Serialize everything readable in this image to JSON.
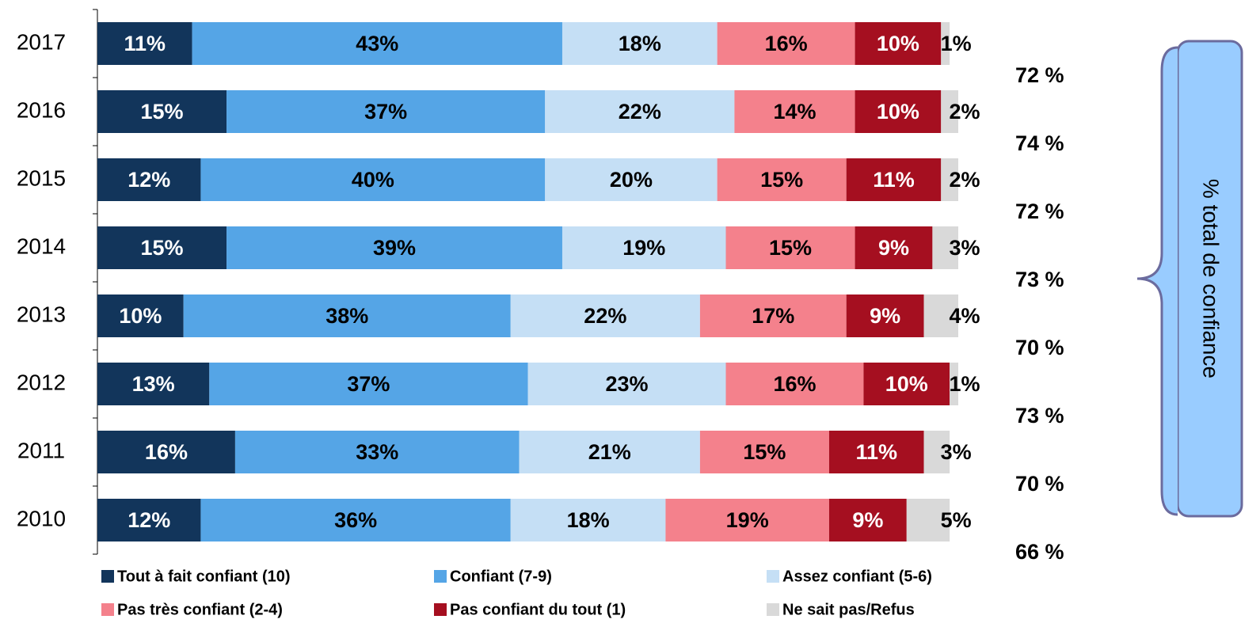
{
  "chart_data": {
    "type": "stacked-barh",
    "categories": [
      "2017",
      "2016",
      "2015",
      "2014",
      "2013",
      "2012",
      "2011",
      "2010"
    ],
    "xlim": [
      0,
      100
    ],
    "series": [
      {
        "name": "Tout à fait confiant (10)",
        "color": "#12355b",
        "label_color": "#ffffff",
        "values": [
          11,
          15,
          12,
          15,
          10,
          13,
          16,
          12
        ],
        "value_labels": [
          "11%",
          "15%",
          "12%",
          "15%",
          "10%",
          "13%",
          "16%",
          "12%"
        ]
      },
      {
        "name": "Confiant (7-9)",
        "color": "#55a5e6",
        "label_color": "#000000",
        "values": [
          43,
          37,
          40,
          39,
          38,
          37,
          33,
          36
        ],
        "value_labels": [
          "43%",
          "37%",
          "40%",
          "39%",
          "38%",
          "37%",
          "33%",
          "36%"
        ]
      },
      {
        "name": "Assez confiant (5-6)",
        "color": "#c5dff5",
        "label_color": "#000000",
        "values": [
          18,
          22,
          20,
          19,
          22,
          23,
          21,
          18
        ],
        "value_labels": [
          "18%",
          "22%",
          "20%",
          "19%",
          "22%",
          "23%",
          "21%",
          "18%"
        ]
      },
      {
        "name": "Pas très confiant (2-4)",
        "color": "#f4818c",
        "label_color": "#000000",
        "values": [
          16,
          14,
          15,
          15,
          17,
          16,
          15,
          19
        ],
        "value_labels": [
          "16%",
          "14%",
          "15%",
          "15%",
          "17%",
          "16%",
          "15%",
          "19%"
        ]
      },
      {
        "name": "Pas confiant du tout (1)",
        "color": "#a50f20",
        "label_color": "#ffffff",
        "values": [
          10,
          10,
          11,
          9,
          9,
          10,
          11,
          9
        ],
        "value_labels": [
          "10%",
          "10%",
          "11%",
          "9%",
          "9%",
          "10%",
          "11%",
          "9%"
        ]
      },
      {
        "name": "Ne sait pas/Refus",
        "color": "#d9d9d9",
        "label_color": "#000000",
        "values": [
          1,
          2,
          2,
          3,
          4,
          1,
          3,
          5
        ],
        "value_labels": [
          "1%",
          "2%",
          "2%",
          "3%",
          "4%",
          "1%",
          "3%",
          "5%"
        ]
      }
    ],
    "totals": {
      "values": [
        72,
        74,
        72,
        73,
        70,
        73,
        70,
        66
      ],
      "value_labels": [
        "72 %",
        "74 %",
        "72 %",
        "73 %",
        "70 %",
        "73 %",
        "70 %",
        "66 %"
      ]
    },
    "bracket_label": "% total de confiance"
  }
}
